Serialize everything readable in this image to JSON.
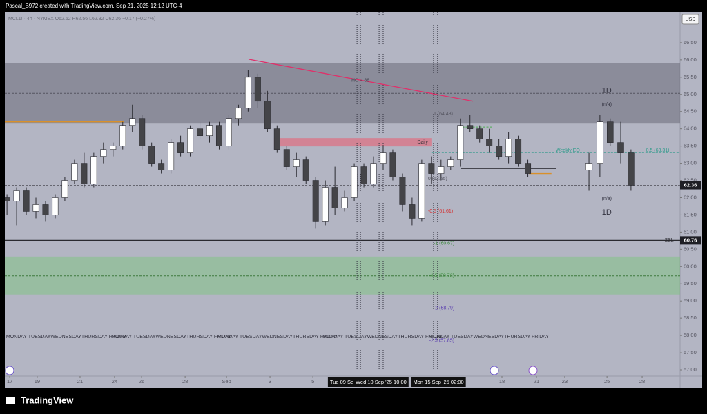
{
  "header": {
    "credit": "Pascal_B972 created with TradingView.com, Sep 21, 2025 12:12 UTC-4",
    "brand": "TradingView"
  },
  "chart_data": {
    "type": "candlestick",
    "symbol_info": "MCL1! · 4h · NYMEX  O62.52  H62.56  L62.32  C62.36  −0.17 (−0.27%)",
    "currency": "USD",
    "up_color": "#ffffff",
    "down_color": "#444448",
    "grid": false,
    "xlim": [
      0,
      31.5
    ],
    "ylim": [
      56.82,
      67.38
    ],
    "yticks": [
      {
        "value": 57,
        "label": "57.00"
      },
      {
        "value": 57.5,
        "label": "57.50"
      },
      {
        "value": 58,
        "label": "58.00"
      },
      {
        "value": 58.5,
        "label": "58.50"
      },
      {
        "value": 59,
        "label": "59.00"
      },
      {
        "value": 59.5,
        "label": "59.50"
      },
      {
        "value": 60,
        "label": "60.00"
      },
      {
        "value": 60.5,
        "label": "60.50"
      },
      {
        "value": 61,
        "label": "61.00"
      },
      {
        "value": 61.5,
        "label": "61.50"
      },
      {
        "value": 62,
        "label": "62.00"
      },
      {
        "value": 62.5,
        "label": "62.50"
      },
      {
        "value": 63,
        "label": "63.00"
      },
      {
        "value": 63.5,
        "label": "63.50"
      },
      {
        "value": 64,
        "label": "64.00"
      },
      {
        "value": 64.5,
        "label": "64.50"
      },
      {
        "value": 65,
        "label": "65.00"
      },
      {
        "value": 65.5,
        "label": "65.50"
      },
      {
        "value": 66,
        "label": "66.00"
      },
      {
        "value": 66.5,
        "label": "66.50"
      }
    ],
    "xticks": [
      {
        "value": 0.23,
        "label": "17"
      },
      {
        "value": 1.51,
        "label": "19"
      },
      {
        "value": 3.51,
        "label": "21"
      },
      {
        "value": 5.12,
        "label": "24"
      },
      {
        "value": 6.38,
        "label": "26"
      },
      {
        "value": 8.41,
        "label": "28"
      },
      {
        "value": 10.34,
        "label": "Sep"
      },
      {
        "value": 12.37,
        "label": "3"
      },
      {
        "value": 14.37,
        "label": "5"
      },
      {
        "value": 23.19,
        "label": "18"
      },
      {
        "value": 24.8,
        "label": "21"
      },
      {
        "value": 26.12,
        "label": "23"
      },
      {
        "value": 28.09,
        "label": "25"
      },
      {
        "value": 29.73,
        "label": "28"
      }
    ],
    "price_markers": [
      62.36,
      60.76
    ],
    "time_markers": [
      {
        "x": 15.72,
        "text": "Tue 09 Se"
      },
      {
        "x": 17.55,
        "text": "Wed 10 Sep '25   10:00"
      },
      {
        "x": 20.23,
        "text": "Mon 15 Sep '25   02:00"
      }
    ],
    "candles": {
      "x": [
        0.1,
        0.55,
        1.0,
        1.45,
        1.9,
        2.35,
        2.8,
        3.25,
        3.7,
        4.15,
        4.6,
        5.05,
        5.5,
        5.95,
        6.4,
        6.85,
        7.3,
        7.75,
        8.2,
        8.65,
        9.1,
        9.55,
        10.0,
        10.45,
        10.9,
        11.35,
        11.8,
        12.25,
        12.7,
        13.15,
        13.6,
        14.05,
        14.5,
        14.95,
        15.4,
        15.85,
        16.3,
        16.75,
        17.2,
        17.65,
        18.1,
        18.55,
        19.0,
        19.45,
        19.9,
        20.35,
        20.8,
        21.25,
        21.7,
        22.15,
        22.6,
        23.05,
        23.5,
        23.95,
        24.4,
        27.25,
        27.76,
        28.24,
        28.73,
        29.21
      ],
      "open": [
        62.0,
        61.9,
        62.2,
        61.6,
        61.8,
        61.5,
        62.0,
        62.5,
        63.0,
        62.4,
        63.2,
        63.4,
        63.5,
        64.1,
        64.3,
        63.5,
        63.0,
        62.8,
        63.6,
        63.3,
        64.0,
        63.8,
        64.1,
        63.5,
        64.3,
        64.6,
        65.5,
        64.8,
        64.0,
        63.4,
        62.9,
        63.1,
        62.5,
        61.3,
        62.3,
        61.7,
        62.0,
        62.9,
        62.4,
        63.0,
        63.3,
        62.6,
        61.8,
        61.4,
        63.0,
        62.7,
        62.9,
        63.1,
        64.1,
        64.0,
        63.7,
        63.5,
        63.2,
        63.7,
        63.0,
        62.8,
        63.0,
        64.2,
        63.6,
        63.3
      ],
      "high": [
        62.1,
        62.3,
        62.3,
        62.0,
        61.9,
        62.1,
        62.6,
        63.1,
        63.3,
        63.3,
        63.6,
        63.6,
        64.2,
        64.7,
        64.4,
        63.6,
        63.1,
        63.7,
        63.8,
        64.1,
        64.2,
        64.2,
        64.2,
        64.4,
        64.7,
        65.7,
        65.6,
        65.1,
        64.1,
        63.5,
        63.3,
        63.2,
        62.6,
        62.5,
        62.9,
        62.2,
        63.0,
        63.0,
        63.2,
        63.5,
        63.4,
        62.7,
        62.0,
        63.1,
        63.2,
        63.1,
        63.2,
        64.3,
        64.4,
        64.1,
        64.0,
        63.7,
        63.9,
        63.8,
        63.1,
        63.3,
        64.4,
        64.3,
        64.2,
        63.4
      ],
      "low": [
        61.5,
        61.2,
        61.5,
        61.4,
        61.3,
        61.4,
        61.9,
        62.4,
        62.3,
        62.3,
        63.0,
        63.2,
        63.4,
        63.9,
        63.4,
        62.9,
        62.7,
        62.7,
        63.2,
        63.2,
        63.7,
        63.6,
        63.4,
        63.4,
        64.1,
        64.5,
        64.6,
        63.9,
        63.3,
        62.8,
        62.6,
        62.4,
        61.1,
        61.2,
        61.5,
        61.6,
        61.9,
        62.3,
        62.3,
        62.8,
        62.5,
        61.6,
        61.2,
        61.3,
        62.4,
        62.5,
        62.8,
        62.9,
        63.9,
        63.6,
        63.3,
        63.1,
        63.0,
        62.9,
        62.6,
        62.2,
        62.6,
        63.5,
        63.0,
        62.2
      ],
      "close": [
        61.9,
        62.2,
        61.6,
        61.8,
        61.5,
        62.0,
        62.5,
        63.0,
        62.4,
        63.2,
        63.4,
        63.5,
        64.1,
        64.3,
        63.5,
        63.0,
        62.8,
        63.6,
        63.3,
        64.0,
        63.8,
        64.1,
        63.5,
        64.3,
        64.6,
        65.5,
        64.8,
        64.0,
        63.4,
        62.9,
        63.1,
        62.5,
        61.3,
        62.3,
        61.7,
        62.0,
        62.9,
        62.4,
        63.0,
        63.3,
        62.6,
        61.8,
        61.4,
        63.0,
        62.7,
        62.9,
        63.1,
        64.1,
        64.0,
        63.7,
        63.5,
        63.2,
        63.7,
        63.0,
        62.7,
        63.0,
        64.2,
        63.6,
        63.3,
        62.36
      ]
    },
    "annotations": [
      {
        "type": "rect",
        "x": [
          0,
          31.5
        ],
        "y": [
          64.17,
          65.9
        ],
        "color": "rgba(90,92,105,0.45)"
      },
      {
        "type": "rect",
        "x": [
          0,
          31.5
        ],
        "y": [
          59.19,
          60.29
        ],
        "color": "rgba(120,200,120,0.45)"
      },
      {
        "type": "rect",
        "x": [
          12.56,
          19.9
        ],
        "y": [
          63.49,
          63.73
        ],
        "color": "rgba(235,90,110,0.55)"
      },
      {
        "type": "line",
        "x": [
          0,
          31.5
        ],
        "y": [
          65.03,
          65.03
        ],
        "color": "#555560",
        "dash": true
      },
      {
        "type": "line",
        "x": [
          0,
          31.5
        ],
        "y": [
          62.36,
          62.36
        ],
        "color": "#666670",
        "dash": true
      },
      {
        "type": "line",
        "x": [
          0,
          31.5
        ],
        "y": [
          59.73,
          59.73
        ],
        "color": "#3d7a3d",
        "dash": true
      },
      {
        "type": "line",
        "x": [
          0,
          31.5
        ],
        "y": [
          60.76,
          60.76
        ],
        "color": "#2a2a30",
        "dash": false
      },
      {
        "type": "line",
        "x": [
          0,
          5.57
        ],
        "y": [
          64.2,
          64.2
        ],
        "color": "#d9902a",
        "dash": false
      },
      {
        "type": "line",
        "x": [
          11.37,
          21.84
        ],
        "y": [
          66.02,
          64.8
        ],
        "color": "#e0306a",
        "dash": false
      },
      {
        "type": "line",
        "x": [
          19.9,
          31.5
        ],
        "y": [
          63.31,
          63.31
        ],
        "color": "#2e9a8a",
        "dash": true
      },
      {
        "type": "line",
        "x": [
          21.29,
          25.73
        ],
        "y": [
          62.85,
          62.85
        ],
        "color": "#222228",
        "dash": false
      },
      {
        "type": "line",
        "x": [
          24.45,
          25.5
        ],
        "y": [
          62.7,
          62.7
        ],
        "color": "#d9902a",
        "dash": false
      },
      {
        "type": "line",
        "x": [
          21.34,
          22.71
        ],
        "y": [
          64.05,
          64.05
        ],
        "color": "#4caf50",
        "dash": true
      },
      {
        "type": "vline",
        "x": [
          16.43
        ],
        "color": "#333340"
      },
      {
        "type": "vline",
        "x": [
          16.59
        ],
        "color": "#333340"
      },
      {
        "type": "vline",
        "x": [
          17.46
        ],
        "color": "#333340"
      },
      {
        "type": "vline",
        "x": [
          17.65
        ],
        "color": "#333340"
      },
      {
        "type": "vline",
        "x": [
          20.0
        ],
        "color": "#333340"
      },
      {
        "type": "vline",
        "x": [
          20.19
        ],
        "color": "#333340"
      },
      {
        "type": "text",
        "x": 19.49,
        "y": 63.61,
        "text": "Daily",
        "color": "#2a2a30",
        "anchor": "middle"
      },
      {
        "type": "text",
        "x": 16.59,
        "y": 65.4,
        "text": "HO = 88",
        "color": "#444450",
        "anchor": "middle"
      },
      {
        "type": "text",
        "x": 25.7,
        "y": 63.37,
        "text": "Weekly EQ",
        "color": "#2e9a8a",
        "anchor": "start"
      },
      {
        "type": "text",
        "x": 31.0,
        "y": 63.37,
        "text": "0.5 (63.31)",
        "color": "#2e9a8a",
        "anchor": "end"
      },
      {
        "type": "text",
        "x": 31.2,
        "y": 60.76,
        "text": "SSL",
        "color": "#2a2a30",
        "anchor": "end"
      },
      {
        "type": "text",
        "x": 20.0,
        "y": 64.43,
        "text": "1 (64.43)",
        "color": "#555560",
        "anchor": "start"
      },
      {
        "type": "text",
        "x": 19.74,
        "y": 62.55,
        "text": "0 (62.55)",
        "color": "#555560",
        "anchor": "start"
      },
      {
        "type": "text",
        "x": 19.74,
        "y": 61.61,
        "text": "-0.5 (61.61)",
        "color": "#d32f2f",
        "anchor": "start"
      },
      {
        "type": "text",
        "x": 20.0,
        "y": 60.67,
        "text": "-1 (60.67)",
        "color": "#3d8a3d",
        "anchor": "start"
      },
      {
        "type": "text",
        "x": 19.8,
        "y": 59.73,
        "text": "-1.5 (59.73)",
        "color": "#3d8a3d",
        "anchor": "start"
      },
      {
        "type": "text",
        "x": 20.0,
        "y": 58.79,
        "text": "-2 (58.79)",
        "color": "#5c3fb0",
        "anchor": "start"
      },
      {
        "type": "text",
        "x": 19.8,
        "y": 57.85,
        "text": "-2.5 (57.85)",
        "color": "#5c3fb0",
        "anchor": "start"
      },
      {
        "type": "text",
        "x": 28.08,
        "y": 65.1,
        "text": "1D",
        "color": "#333340",
        "anchor": "middle",
        "big": true
      },
      {
        "type": "text",
        "x": 28.08,
        "y": 64.7,
        "text": "(n/a)",
        "color": "#333340",
        "anchor": "middle"
      },
      {
        "type": "text",
        "x": 28.08,
        "y": 61.97,
        "text": "(n/a)",
        "color": "#333340",
        "anchor": "middle"
      },
      {
        "type": "text",
        "x": 28.08,
        "y": 61.57,
        "text": "1D",
        "color": "#333340",
        "anchor": "middle",
        "big": true
      },
      {
        "type": "text",
        "x": 0.06,
        "y": 57.96,
        "text": "MONDAY TUESDAYWEDNESDAYTHURSDAY FRIDAY",
        "color": "#333340",
        "anchor": "start"
      },
      {
        "type": "text",
        "x": 4.96,
        "y": 57.96,
        "text": "MONDAY TUESDAYWEDNESDAYTHURSDAY FRIDAY",
        "color": "#333340",
        "anchor": "start"
      },
      {
        "type": "text",
        "x": 9.92,
        "y": 57.96,
        "text": "MONDAY TUESDAYWEDNESDAYTHURSDAY FRIDAY",
        "color": "#333340",
        "anchor": "start"
      },
      {
        "type": "text",
        "x": 14.82,
        "y": 57.96,
        "text": "MONDAY TUESDAYWEDNESDAYTHURSDAY FRIDAY",
        "color": "#333340",
        "anchor": "start"
      },
      {
        "type": "text",
        "x": 19.78,
        "y": 57.96,
        "text": "MONDAY TUESDAYWEDNESDAYTHURSDAY FRIDAY",
        "color": "#333340",
        "anchor": "start"
      }
    ]
  }
}
